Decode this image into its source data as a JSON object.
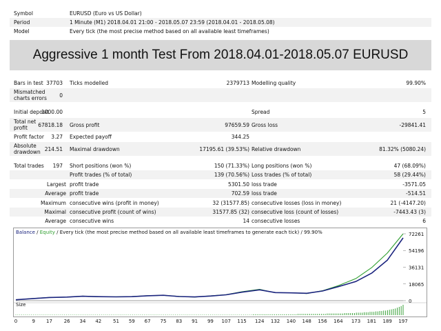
{
  "header": {
    "symbol_label": "Symbol",
    "symbol_value": "EURUSD (Euro vs US Dollar)",
    "period_label": "Period",
    "period_value": "1 Minute (M1) 2018.04.01 21:00 - 2018.05.07 23:59 (2018.04.01 - 2018.05.08)",
    "model_label": "Model",
    "model_value": "Every tick (the most precise method based on all available least timeframes)"
  },
  "banner": "Aggressive 1 month Test From 2018.04.01-2018.05.07 EURUSD",
  "stats": {
    "bars_label": "Bars in test",
    "bars_value": "37703",
    "ticks_label": "Ticks modelled",
    "ticks_value": "2379713",
    "quality_label": "Modelling quality",
    "quality_value": "99.90%",
    "mismatch_label_1": "Mismatched",
    "mismatch_label_2": "charts errors",
    "mismatch_value": "0",
    "deposit_label": "Initial deposit",
    "deposit_value": "1000.00",
    "spread_label": "Spread",
    "spread_value": "5",
    "netprofit_label_1": "Total net",
    "netprofit_label_2": "profit",
    "netprofit_value": "67818.18",
    "grossprofit_label": "Gross profit",
    "grossprofit_value": "97659.59",
    "grossloss_label": "Gross loss",
    "grossloss_value": "-29841.41",
    "pf_label": "Profit factor",
    "pf_value": "3.27",
    "payoff_label": "Expected payoff",
    "payoff_value": "344.25",
    "absdd_label_1": "Absolute",
    "absdd_label_2": "drawdown",
    "absdd_value": "214.51",
    "maxdd_label": "Maximal drawdown",
    "maxdd_value": "17195.61 (39.53%)",
    "reldd_label": "Relative drawdown",
    "reldd_value": "81.32% (5080.24)",
    "trades_label": "Total trades",
    "trades_value": "197",
    "short_label": "Short positions (won %)",
    "short_value": "150 (71.33%)",
    "long_label": "Long positions (won %)",
    "long_value": "47 (68.09%)",
    "pt_label": "Profit trades (% of total)",
    "pt_value": "139 (70.56%)",
    "lt_label": "Loss trades (% of total)",
    "lt_value": "58 (29.44%)",
    "largest_label": "Largest",
    "largest_pt_label": "profit trade",
    "largest_pt_value": "5301.50",
    "largest_lt_label": "loss trade",
    "largest_lt_value": "-3571.05",
    "average_label": "Average",
    "avg_pt_label": "profit trade",
    "avg_pt_value": "702.59",
    "avg_lt_label": "loss trade",
    "avg_lt_value": "-514.51",
    "maximum_label": "Maximum",
    "max_cw_label": "consecutive wins (profit in money)",
    "max_cw_value": "32 (31577.85)",
    "max_cl_label": "consecutive losses (loss in money)",
    "max_cl_value": "21 (-4147.20)",
    "maximal_label": "Maximal",
    "mal_cp_label": "consecutive profit (count of wins)",
    "mal_cp_value": "31577.85 (32)",
    "mal_cl_label": "consecutive loss (count of losses)",
    "mal_cl_value": "-7443.43 (3)",
    "average2_label": "Average",
    "avg_cw_label": "consecutive wins",
    "avg_cw_value": "14",
    "avg_cl_label": "consecutive losses",
    "avg_cl_value": "6"
  },
  "chart_legend": {
    "balance": "Balance",
    "sep1": " / ",
    "equity": "Equity",
    "sep2": " / ",
    "rest": "Every tick (the most precise method based on all available least timeframes to generate each tick) / 99.90%",
    "size": "Size"
  },
  "colors": {
    "balance": "#1a237e",
    "equity": "#2e9e2e",
    "size_bars": "#3aa13a",
    "zero_line": "#7a7a7a"
  },
  "chart_data": {
    "type": "line",
    "x": [
      0,
      9,
      17,
      26,
      34,
      42,
      51,
      59,
      67,
      75,
      83,
      91,
      99,
      107,
      115,
      124,
      132,
      140,
      148,
      156,
      164,
      173,
      181,
      189,
      197
    ],
    "series": [
      {
        "name": "Balance",
        "values": [
          1000,
          2300,
          3400,
          3900,
          4800,
          4300,
          4100,
          4300,
          5300,
          5800,
          4500,
          4000,
          5000,
          6300,
          9200,
          11700,
          8700,
          8400,
          8000,
          10400,
          15100,
          20700,
          29700,
          43800,
          67818
        ]
      },
      {
        "name": "Equity",
        "values": [
          1000,
          2400,
          3500,
          3800,
          4900,
          4200,
          4200,
          4400,
          5400,
          5700,
          4600,
          3900,
          5200,
          6500,
          9600,
          12200,
          8600,
          8600,
          7700,
          10700,
          16200,
          23900,
          35700,
          51500,
          72261
        ]
      }
    ],
    "size_bars": [
      1,
      1,
      1,
      1,
      1,
      1,
      1,
      1,
      1,
      1,
      1,
      1,
      1,
      1,
      1,
      1,
      1,
      1,
      1,
      1,
      1,
      1,
      1,
      1,
      1,
      1,
      1,
      1,
      1,
      1,
      1,
      1,
      1,
      1,
      1,
      1,
      1,
      1,
      1,
      1,
      1,
      1,
      1,
      1,
      1,
      1,
      1,
      1,
      1,
      1,
      1,
      1,
      1,
      1,
      1,
      1,
      1,
      1,
      1,
      1,
      1,
      1,
      1,
      1,
      1,
      1,
      1,
      1,
      1,
      1,
      1,
      1,
      1,
      1,
      1,
      1,
      1,
      1,
      1,
      1,
      1,
      1,
      1,
      1,
      1,
      1,
      1,
      1,
      1,
      1,
      1,
      1,
      1,
      1,
      1,
      1,
      1,
      1,
      1,
      1,
      1,
      1,
      1,
      1,
      1,
      1,
      1,
      1,
      1,
      1,
      1,
      1,
      1,
      1,
      1,
      1,
      1,
      1,
      1,
      1,
      1,
      1,
      2,
      2,
      2,
      2,
      2,
      2,
      2,
      2,
      2,
      2,
      2,
      2,
      2,
      2,
      2,
      2,
      2,
      2,
      2,
      2,
      2,
      2,
      2,
      3,
      3,
      3,
      3,
      3,
      3,
      3,
      3,
      3,
      3,
      3,
      3,
      3,
      3,
      3,
      4,
      4,
      4,
      4,
      4,
      4,
      4,
      4,
      4,
      5,
      5,
      5,
      5,
      5,
      5,
      6,
      6,
      6,
      6,
      7,
      7,
      7,
      8,
      8,
      8,
      9,
      9,
      10,
      10,
      11,
      11,
      12,
      13,
      14,
      15,
      16,
      18,
      20,
      22,
      25
    ],
    "ytick_labels": [
      "72261",
      "54196",
      "36131",
      "18065",
      "0"
    ],
    "ytick_values": [
      72261,
      54196,
      36131,
      18065,
      0
    ],
    "ylim": [
      0,
      72261
    ],
    "xtick_labels": [
      "0",
      "9",
      "17",
      "26",
      "34",
      "42",
      "51",
      "59",
      "67",
      "75",
      "83",
      "91",
      "99",
      "107",
      "115",
      "124",
      "132",
      "140",
      "148",
      "156",
      "164",
      "173",
      "181",
      "189",
      "197"
    ],
    "xlim": [
      0,
      197
    ],
    "grid": false
  }
}
